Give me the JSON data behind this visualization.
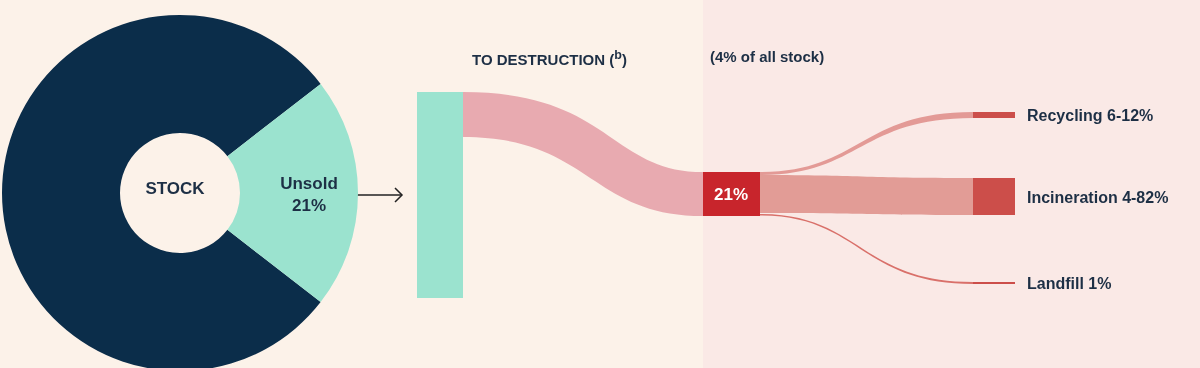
{
  "chart_data": [
    {
      "type": "donut",
      "categories": [
        null,
        "Unsold"
      ],
      "values": [
        79,
        21
      ],
      "colors": [
        "#0b2d4a",
        "#9be3cf"
      ],
      "value_labels": [
        null,
        "21%"
      ],
      "annotations": [
        "STOCK"
      ]
    },
    {
      "type": "other",
      "title": "TO DESTRUCTION ($^{b}$)",
      "subtitle": "(4% of all stock)",
      "annotations": [
        "21%",
        "Recycling 6-12%",
        "Incineration 4-82%",
        "Landfill 1%"
      ]
    }
  ]
}
